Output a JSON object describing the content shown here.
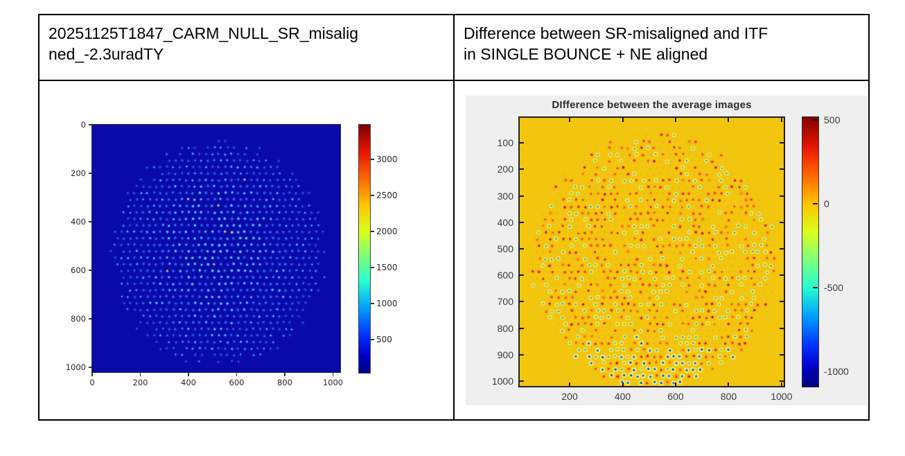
{
  "header": {
    "left": {
      "full": "20251125T1847_CARM_NULL_SR_misaligned_-2.3uradTY",
      "lines": [
        "20251125T1847_CARM_NULL_SR_misalig",
        "ned_-2.3uradTY"
      ]
    },
    "right": {
      "full": "Difference between SR-misaligned and ITF in SINGLE BOUNCE + NE aligned",
      "lines": [
        "Difference between SR-misaligned and ITF",
        "in SINGLE BOUNCE + NE aligned"
      ]
    }
  },
  "chart_data": [
    {
      "panel": "left",
      "type": "heatmap",
      "style": "matplotlib",
      "title": "",
      "colormap": "jet",
      "x_ticks": [
        0,
        200,
        400,
        600,
        800,
        1000
      ],
      "y_ticks": [
        0,
        200,
        400,
        600,
        800,
        1000
      ],
      "y_axis_direction": "down",
      "image_extent": [
        0,
        1024,
        0,
        1024
      ],
      "colorbar_ticks": [
        500,
        1000,
        1500,
        2000,
        2500,
        3000
      ],
      "approx_value_range": [
        0,
        3490
      ],
      "background_color": "#0a0aa8",
      "pattern": "regular grid of small bright blue/cyan dots (~27 data-px pitch) on dark navy field, beam-shaped coverage, brighter dots toward centre"
    },
    {
      "panel": "right",
      "type": "heatmap",
      "style": "matlab",
      "title": "DIfference between the average images",
      "colormap": "jet",
      "x_ticks": [
        200,
        400,
        600,
        800,
        1000
      ],
      "y_ticks": [
        100,
        200,
        300,
        400,
        500,
        600,
        700,
        800,
        900,
        1000
      ],
      "y_axis_direction": "down",
      "image_extent": [
        0,
        1024,
        0,
        1024
      ],
      "colorbar_ticks": [
        500,
        0,
        -500,
        -1000
      ],
      "approx_value_range": [
        -1095,
        520
      ],
      "background_color": "#f2c50e",
      "pattern": "golden (≈0) field with dot grid: red/orange residual spots mostly upper area and bottom-right, yellow-green haloed teal spots, cyan/blue cored dots along bottom centre rows"
    }
  ],
  "render": {
    "left_dots": {
      "seed": 12,
      "pitch": 9.35,
      "stagger": 3.2,
      "jitter": 1.6,
      "glow_rgb": "30,70,240",
      "core_colors": [
        "#3a6ef5",
        "#5fd4ff",
        "#8ef2e0",
        "#ffd050"
      ]
    },
    "right_dots": {
      "seed": 7,
      "pitch": 9.4,
      "stagger": 3.4,
      "jitter": 2.2,
      "halo_pale": "252,246,170",
      "halo_orange": "248,150,30",
      "ring_green": "160,214,75",
      "red_cores": [
        "#e02a00",
        "#c81800",
        "#ff3d00"
      ],
      "green_cores": [
        "#3fae86",
        "#8cc531"
      ],
      "blue_cores": [
        "#1b6fb4",
        "#124f9b"
      ],
      "speck_rgba": "242,160,40,0.55"
    }
  }
}
